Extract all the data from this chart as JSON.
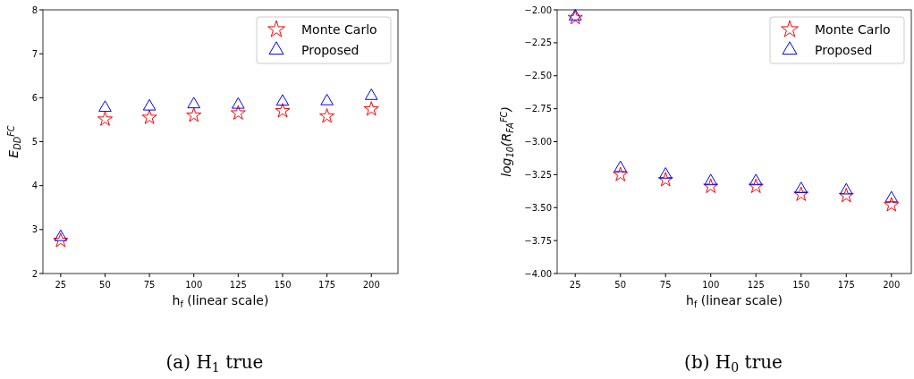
{
  "chart_data": [
    {
      "type": "scatter",
      "xlabel": "h$_{f}$ (linear scale)",
      "ylabel": "E$_{DD}$$^{FC}$",
      "annotations": [
        "(a)  H$_{1}$ true"
      ],
      "x": [
        25,
        50,
        75,
        100,
        125,
        150,
        175,
        200
      ],
      "xlim": [
        15,
        215
      ],
      "xticks": [
        25,
        50,
        75,
        100,
        125,
        150,
        175,
        200
      ],
      "ylim": [
        2,
        8
      ],
      "yticks": [
        2,
        3,
        4,
        5,
        6,
        7,
        8
      ],
      "legend": "top right",
      "grid": false,
      "series": [
        {
          "name": "Monte Carlo",
          "color": "#ff0000",
          "marker": "star",
          "values": [
            2.75,
            5.51,
            5.55,
            5.6,
            5.65,
            5.7,
            5.58,
            5.74
          ]
        },
        {
          "name": "Proposed",
          "color": "#0000ff",
          "marker": "triangle",
          "values": [
            2.83,
            5.77,
            5.8,
            5.85,
            5.84,
            5.91,
            5.92,
            6.04
          ]
        }
      ]
    },
    {
      "type": "scatter",
      "xlabel": "h$_{f}$ (linear scale)",
      "ylabel": "log$_{10}$(R$_{FA}$$^{FC}$)",
      "annotations": [
        "(b)  H$_{0}$ true"
      ],
      "x": [
        25,
        50,
        75,
        100,
        125,
        150,
        175,
        200
      ],
      "xlim": [
        15,
        211
      ],
      "xticks": [
        25,
        50,
        75,
        100,
        125,
        150,
        175,
        200
      ],
      "ylim": [
        -4,
        -2
      ],
      "yticks": [
        {
          "value": -4,
          "label": "−4.00"
        },
        {
          "value": -3.75,
          "label": "−3.75"
        },
        {
          "value": -3.5,
          "label": "−3.50"
        },
        {
          "value": -3.25,
          "label": "−3.25"
        },
        {
          "value": -3,
          "label": "−3.00"
        },
        {
          "value": -2.75,
          "label": "−2.75"
        },
        {
          "value": -2.5,
          "label": "−2.50"
        },
        {
          "value": -2.25,
          "label": "−2.25"
        },
        {
          "value": -2,
          "label": "−2.00"
        }
      ],
      "legend": "top right",
      "grid": false,
      "series": [
        {
          "name": "Monte Carlo",
          "color": "#ff0000",
          "marker": "star",
          "values": [
            -2.06,
            -3.25,
            -3.29,
            -3.34,
            -3.34,
            -3.4,
            -3.41,
            -3.48
          ]
        },
        {
          "name": "Proposed",
          "color": "#0000ff",
          "marker": "triangle",
          "values": [
            -2.05,
            -3.2,
            -3.25,
            -3.3,
            -3.3,
            -3.36,
            -3.37,
            -3.43
          ]
        }
      ]
    }
  ]
}
